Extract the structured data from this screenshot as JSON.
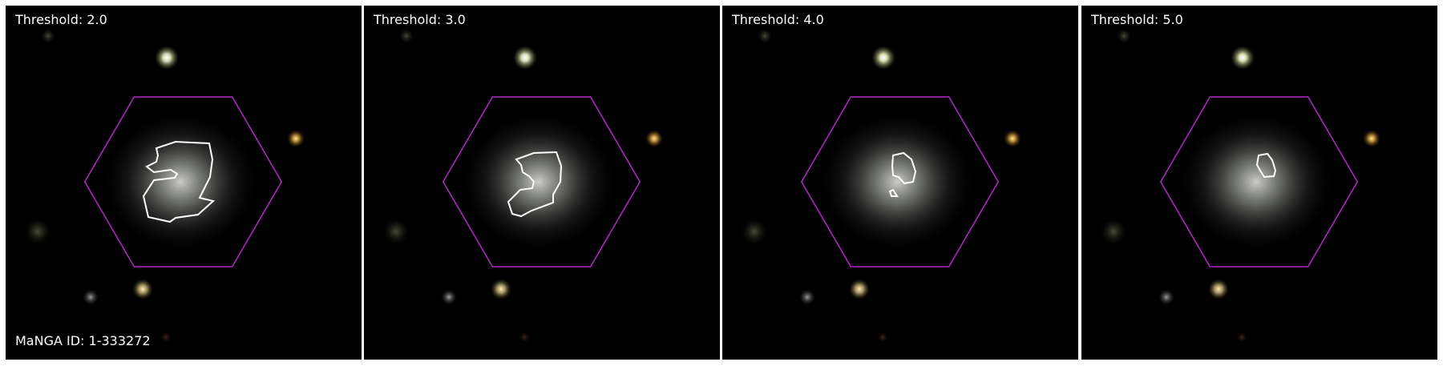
{
  "galaxy_id_label": "MaNGA ID: 1-333272",
  "panels": [
    {
      "threshold_label": "Threshold: 2.0"
    },
    {
      "threshold_label": "Threshold: 3.0"
    },
    {
      "threshold_label": "Threshold: 4.0"
    },
    {
      "threshold_label": "Threshold: 5.0"
    }
  ],
  "colors": {
    "background": "#000000",
    "ifu_hexagon": "#b428c8",
    "contour": "#ffffff",
    "label_text": "#ffffff"
  }
}
